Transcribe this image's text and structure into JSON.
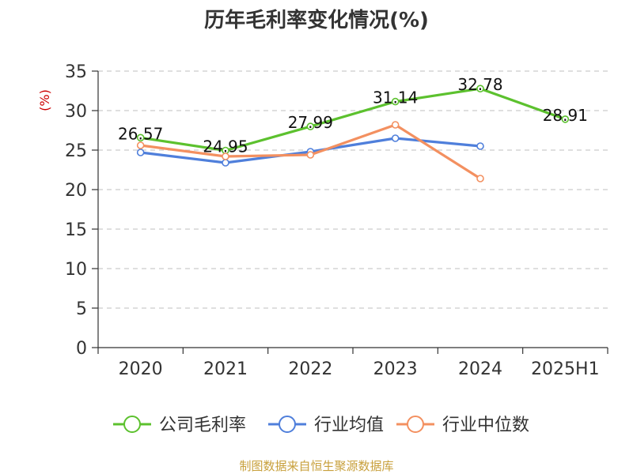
{
  "chart_data": {
    "type": "line",
    "title": "历年毛利率变化情况(%)",
    "ylabel": "(%)",
    "ylim": [
      0,
      35
    ],
    "yticks": [
      0,
      5,
      10,
      15,
      20,
      25,
      30,
      35
    ],
    "grid": "horizontal-dashed",
    "legend_position": "bottom",
    "categories": [
      "2020",
      "2021",
      "2022",
      "2023",
      "2024",
      "2025H1"
    ],
    "series": [
      {
        "name": "公司毛利率",
        "color": "#5cc12e",
        "values": [
          26.57,
          24.95,
          27.99,
          31.14,
          32.78,
          28.91
        ],
        "labels": [
          "26.57",
          "24.95",
          "27.99",
          "31.14",
          "32.78",
          "28.91"
        ]
      },
      {
        "name": "行业均值",
        "color": "#4f7fdb",
        "values": [
          24.7,
          23.4,
          24.8,
          26.5,
          25.5,
          null
        ]
      },
      {
        "name": "行业中位数",
        "color": "#f39060",
        "values": [
          25.6,
          24.2,
          24.4,
          28.2,
          21.4,
          null
        ]
      }
    ]
  },
  "source": "制图数据来自恒生聚源数据库"
}
